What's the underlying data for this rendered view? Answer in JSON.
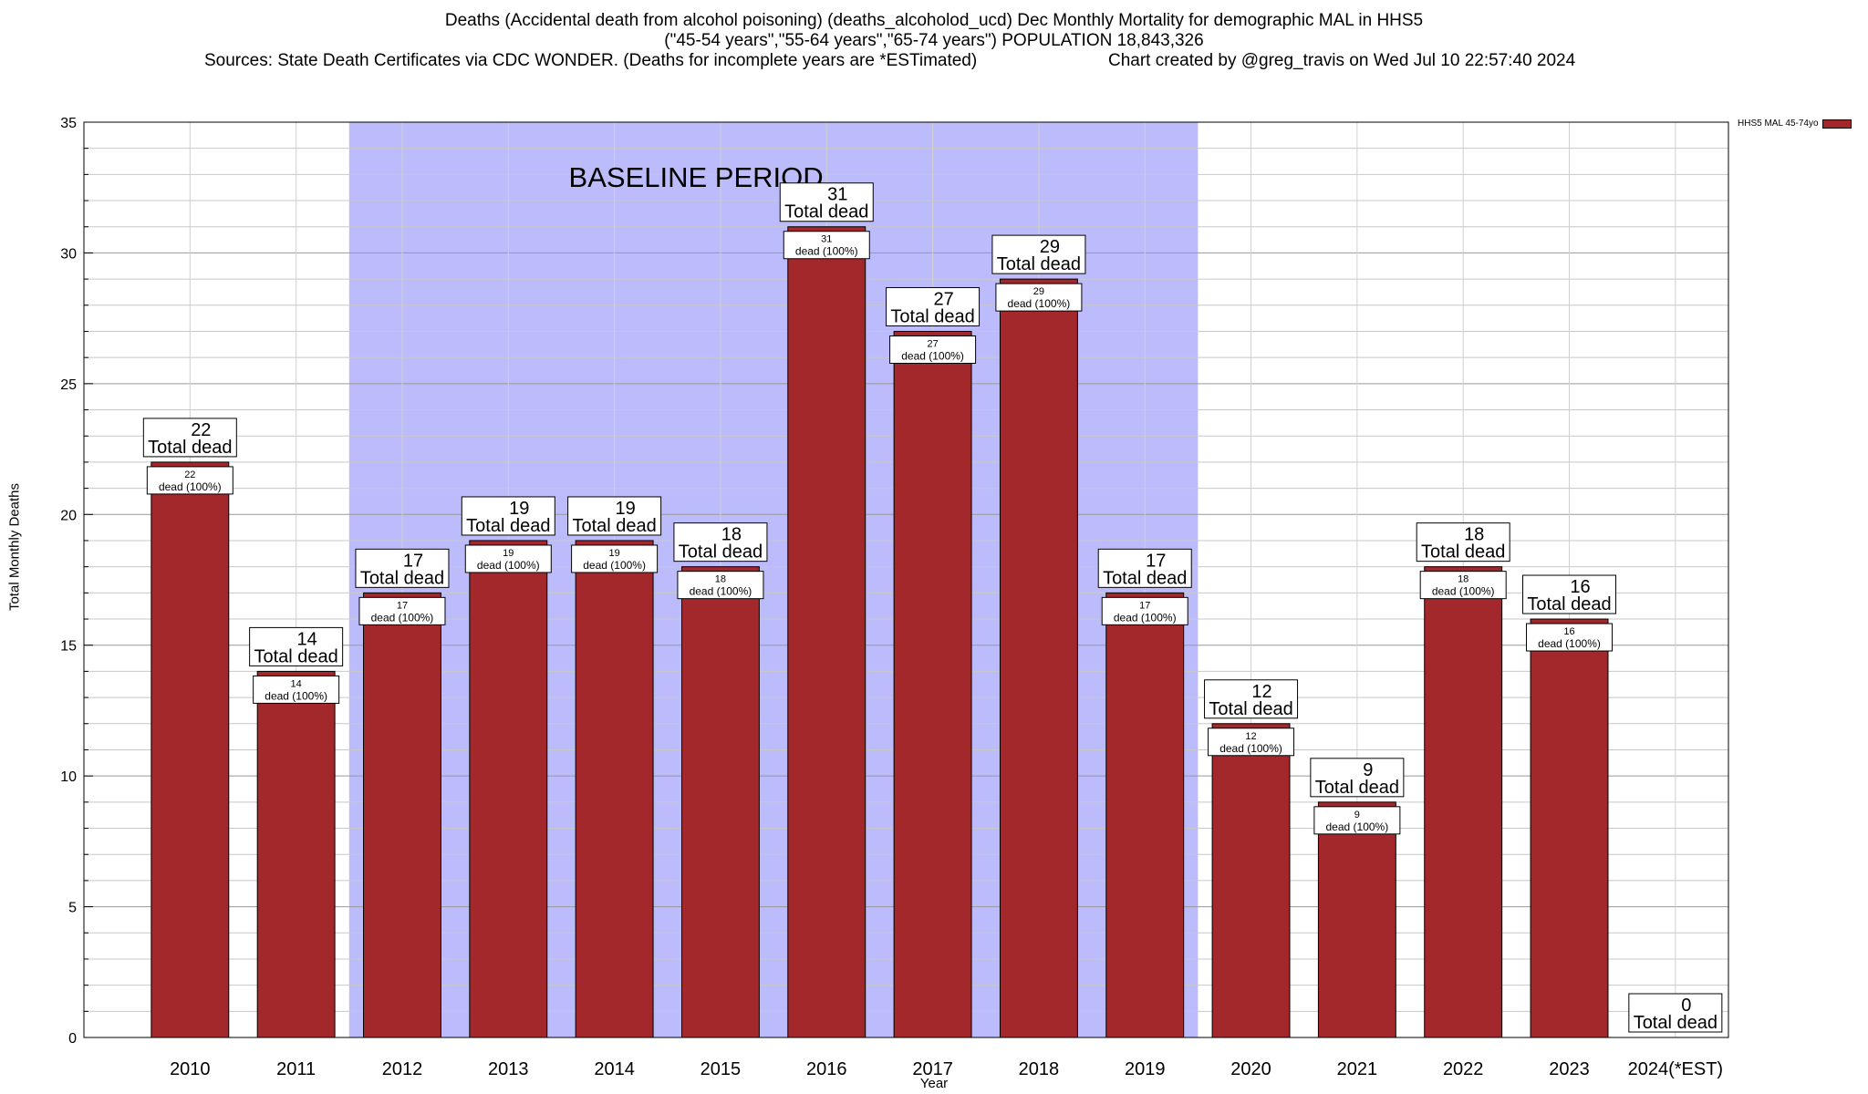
{
  "header": {
    "title_line1": "Deaths (Accidental death from alcohol poisoning) (deaths_alcoholod_ucd) Dec Monthly Mortality for demographic MAL in HHS5",
    "title_line2": "(\"45-54 years\",\"55-64 years\",\"65-74 years\") POPULATION 18,843,326",
    "title_line3_left": "Sources: State Death Certificates via CDC WONDER. (Deaths for incomplete years are *ESTimated)",
    "title_line3_right": "Chart created by @greg_travis on Wed Jul 10 22:57:40 2024"
  },
  "chart_data": {
    "type": "bar",
    "categories": [
      "2010",
      "2011",
      "2012",
      "2013",
      "2014",
      "2015",
      "2016",
      "2017",
      "2018",
      "2019",
      "2020",
      "2021",
      "2022",
      "2023",
      "2024(*EST)"
    ],
    "series": [
      {
        "name": "HHS5 MAL 45-74yo",
        "values": [
          22,
          14,
          17,
          19,
          19,
          18,
          31,
          27,
          29,
          17,
          12,
          9,
          18,
          16,
          0
        ],
        "color": "#a3282b"
      }
    ],
    "total_label": "Total dead",
    "inner_label": "dead (100%)",
    "xlabel": "Year",
    "ylabel": "Total Monthly Deaths",
    "ylim": [
      0,
      35
    ],
    "yticks": [
      0,
      5,
      10,
      15,
      20,
      25,
      30,
      35
    ],
    "grid": true,
    "legend_position": "top-right",
    "baseline": {
      "label": "BASELINE PERIOD",
      "from": "2012",
      "to": "2019",
      "color": "#bcbcfc"
    }
  }
}
